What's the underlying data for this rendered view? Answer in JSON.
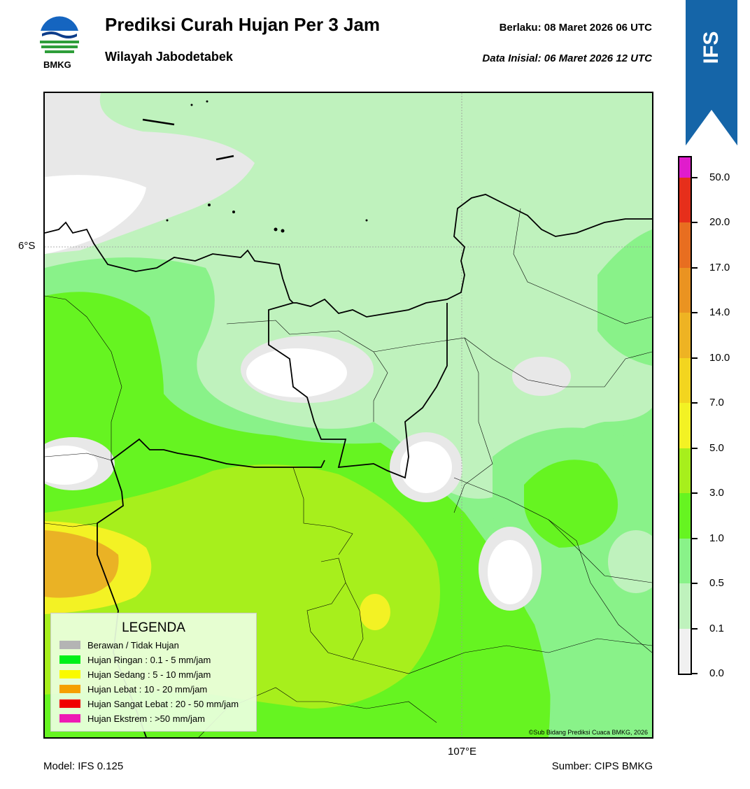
{
  "header": {
    "title": "Prediksi Curah Hujan Per 3 Jam",
    "subtitle": "Wilayah Jabodetabek",
    "valid_label": "Berlaku:  08 Maret 2026 06 UTC",
    "init_label": "Data Inisial:  06 Maret 2026 12 UTC",
    "logo_text": "BMKG"
  },
  "badge": {
    "text": "IFS",
    "color": "#1565a8"
  },
  "map": {
    "lat_label": "6°S",
    "lon_label": "107°E",
    "credit": "©Sub Bidang Prediksi Cuaca BMKG, 2026"
  },
  "legend": {
    "title": "LEGENDA",
    "items": [
      {
        "label": "Berawan / Tidak Hujan",
        "color": "#b4b4b4"
      },
      {
        "label": "Hujan Ringan : 0.1 - 5 mm/jam",
        "color": "#00f018"
      },
      {
        "label": "Hujan Sedang : 5 - 10 mm/jam",
        "color": "#fafa00"
      },
      {
        "label": "Hujan Lebat : 10 - 20 mm/jam",
        "color": "#f5a000"
      },
      {
        "label": "Hujan Sangat Lebat : 20 - 50 mm/jam",
        "color": "#f00000"
      },
      {
        "label": "Hujan Ekstrem : >50 mm/jam",
        "color": "#ee1ab4"
      }
    ]
  },
  "colorbar": {
    "ticks": [
      "0.0",
      "0.1",
      "0.5",
      "1.0",
      "3.0",
      "5.0",
      "7.0",
      "10.0",
      "14.0",
      "17.0",
      "20.0",
      "50.0"
    ],
    "colors": [
      "#f0f0f0",
      "#bff2bd",
      "#89f289",
      "#66f421",
      "#a7ef1c",
      "#f3f224",
      "#f3d51f",
      "#eeb323",
      "#ea9321",
      "#e86e20",
      "#e62f1b",
      "#e01ccc"
    ]
  },
  "footer": {
    "model": "Model: IFS 0.125",
    "source": "Sumber: CIPS BMKG"
  }
}
